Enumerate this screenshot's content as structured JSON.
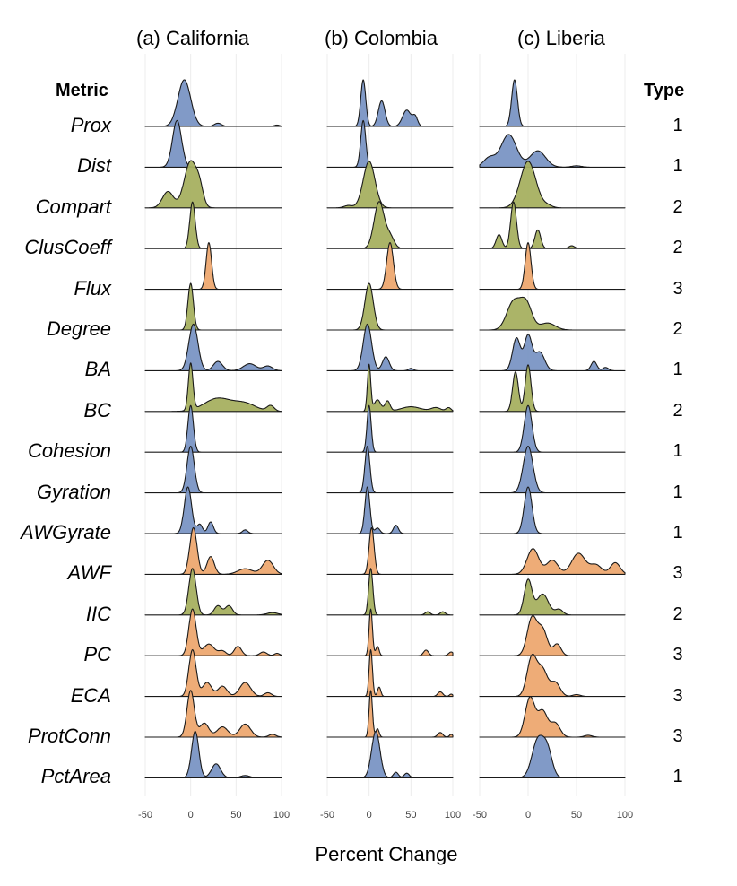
{
  "header": {
    "metric": "Metric",
    "type": "Type"
  },
  "xlabel": "Percent Change",
  "chart_data": {
    "type": "ridgeline",
    "x_ticks": [
      -50,
      0,
      50,
      100
    ],
    "xlim": [
      -50,
      100
    ],
    "colors": {
      "1": "#7a95c4",
      "2": "#a6b060",
      "3": "#eda870"
    },
    "panels": [
      {
        "key": "california",
        "title": "(a) California"
      },
      {
        "key": "colombia",
        "title": "(b) Colombia"
      },
      {
        "key": "liberia",
        "title": "(c) Liberia"
      }
    ],
    "rows": [
      {
        "metric": "Prox",
        "type": 1,
        "california": [
          [
            -7,
            7,
            1
          ],
          [
            30,
            4,
            0.07
          ],
          [
            95,
            3,
            0.03
          ]
        ],
        "colombia": [
          [
            -7,
            3,
            1
          ],
          [
            15,
            4,
            0.55
          ],
          [
            45,
            5,
            0.35
          ],
          [
            55,
            3,
            0.2
          ]
        ],
        "liberia": [
          [
            -14,
            3,
            1
          ]
        ]
      },
      {
        "metric": "Dist",
        "type": 1,
        "california": [
          [
            -15,
            5,
            1
          ]
        ],
        "colombia": [
          [
            -7,
            3,
            1
          ]
        ],
        "liberia": [
          [
            -20,
            8,
            0.7
          ],
          [
            -40,
            6,
            0.2
          ],
          [
            10,
            8,
            0.35
          ],
          [
            50,
            5,
            0.03
          ]
        ]
      },
      {
        "metric": "Compart",
        "type": 2,
        "california": [
          [
            0,
            7,
            1
          ],
          [
            -25,
            6,
            0.35
          ],
          [
            10,
            4,
            0.3
          ]
        ],
        "colombia": [
          [
            0,
            7,
            1
          ],
          [
            -25,
            5,
            0.05
          ]
        ],
        "liberia": [
          [
            0,
            8,
            1
          ],
          [
            20,
            5,
            0.05
          ]
        ]
      },
      {
        "metric": "ClusCoeff",
        "type": 2,
        "california": [
          [
            2,
            3,
            1
          ]
        ],
        "colombia": [
          [
            12,
            6,
            1
          ],
          [
            25,
            5,
            0.25
          ]
        ],
        "liberia": [
          [
            -15,
            3,
            1
          ],
          [
            -30,
            3,
            0.3
          ],
          [
            10,
            3,
            0.4
          ],
          [
            45,
            3,
            0.06
          ]
        ]
      },
      {
        "metric": "Flux",
        "type": 3,
        "california": [
          [
            20,
            3,
            1
          ]
        ],
        "colombia": [
          [
            25,
            4,
            1
          ]
        ],
        "liberia": [
          [
            0,
            3,
            1
          ]
        ]
      },
      {
        "metric": "Degree",
        "type": 2,
        "california": [
          [
            0,
            3,
            1
          ]
        ],
        "colombia": [
          [
            0,
            5,
            1
          ]
        ],
        "liberia": [
          [
            -15,
            7,
            0.6
          ],
          [
            -2,
            6,
            0.55
          ],
          [
            20,
            8,
            0.15
          ]
        ]
      },
      {
        "metric": "BA",
        "type": 1,
        "california": [
          [
            3,
            5,
            1
          ],
          [
            30,
            5,
            0.2
          ],
          [
            65,
            7,
            0.15
          ],
          [
            85,
            5,
            0.1
          ]
        ],
        "colombia": [
          [
            -2,
            5,
            1
          ],
          [
            20,
            4,
            0.3
          ],
          [
            50,
            3,
            0.05
          ]
        ],
        "liberia": [
          [
            -12,
            4,
            0.7
          ],
          [
            0,
            4,
            0.75
          ],
          [
            12,
            5,
            0.4
          ],
          [
            68,
            3,
            0.2
          ],
          [
            80,
            3,
            0.07
          ]
        ]
      },
      {
        "metric": "BC",
        "type": 2,
        "california": [
          [
            0,
            2.5,
            1
          ],
          [
            30,
            15,
            0.28
          ],
          [
            60,
            12,
            0.16
          ],
          [
            88,
            4,
            0.12
          ]
        ],
        "colombia": [
          [
            0,
            2,
            1
          ],
          [
            10,
            4,
            0.25
          ],
          [
            22,
            3,
            0.22
          ],
          [
            50,
            12,
            0.1
          ],
          [
            80,
            6,
            0.08
          ],
          [
            95,
            3,
            0.08
          ]
        ],
        "liberia": [
          [
            -13,
            3,
            0.85
          ],
          [
            0,
            3,
            1
          ]
        ]
      },
      {
        "metric": "Cohesion",
        "type": 1,
        "california": [
          [
            0,
            3,
            1
          ]
        ],
        "colombia": [
          [
            0,
            2.5,
            1
          ]
        ],
        "liberia": [
          [
            0,
            4,
            1
          ]
        ]
      },
      {
        "metric": "Gyration",
        "type": 1,
        "california": [
          [
            0,
            4,
            1
          ]
        ],
        "colombia": [
          [
            -2,
            3,
            1
          ]
        ],
        "liberia": [
          [
            0,
            5,
            1
          ]
        ]
      },
      {
        "metric": "AWGyrate",
        "type": 1,
        "california": [
          [
            -3,
            4,
            1
          ],
          [
            10,
            3,
            0.2
          ],
          [
            22,
            3,
            0.25
          ],
          [
            60,
            3,
            0.08
          ]
        ],
        "colombia": [
          [
            -2,
            3,
            1
          ],
          [
            10,
            3,
            0.12
          ],
          [
            32,
            3,
            0.18
          ]
        ],
        "liberia": [
          [
            0,
            4,
            1
          ]
        ]
      },
      {
        "metric": "AWF",
        "type": 3,
        "california": [
          [
            3,
            4,
            1
          ],
          [
            22,
            4,
            0.38
          ],
          [
            60,
            8,
            0.12
          ],
          [
            85,
            6,
            0.3
          ]
        ],
        "colombia": [
          [
            3,
            3,
            1
          ]
        ],
        "liberia": [
          [
            5,
            6,
            0.55
          ],
          [
            25,
            6,
            0.3
          ],
          [
            52,
            7,
            0.45
          ],
          [
            70,
            6,
            0.2
          ],
          [
            90,
            5,
            0.25
          ]
        ]
      },
      {
        "metric": "IIC",
        "type": 2,
        "california": [
          [
            2,
            4,
            1
          ],
          [
            30,
            4,
            0.2
          ],
          [
            42,
            4,
            0.2
          ],
          [
            90,
            6,
            0.05
          ]
        ],
        "colombia": [
          [
            2,
            2.5,
            1
          ],
          [
            70,
            3,
            0.07
          ],
          [
            88,
            3,
            0.07
          ]
        ],
        "liberia": [
          [
            0,
            4,
            0.75
          ],
          [
            15,
            6,
            0.45
          ],
          [
            32,
            4,
            0.12
          ]
        ]
      },
      {
        "metric": "PC",
        "type": 3,
        "california": [
          [
            2,
            4,
            1
          ],
          [
            20,
            6,
            0.25
          ],
          [
            35,
            4,
            0.1
          ],
          [
            52,
            4,
            0.2
          ],
          [
            80,
            4,
            0.08
          ],
          [
            95,
            3,
            0.05
          ]
        ],
        "colombia": [
          [
            2,
            2,
            1
          ],
          [
            10,
            2,
            0.2
          ],
          [
            68,
            3,
            0.12
          ],
          [
            98,
            3,
            0.08
          ]
        ],
        "liberia": [
          [
            4,
            5,
            0.8
          ],
          [
            15,
            5,
            0.55
          ],
          [
            30,
            4,
            0.25
          ]
        ]
      },
      {
        "metric": "ECA",
        "type": 3,
        "california": [
          [
            2,
            4,
            1
          ],
          [
            18,
            5,
            0.3
          ],
          [
            35,
            5,
            0.22
          ],
          [
            60,
            6,
            0.3
          ],
          [
            85,
            4,
            0.08
          ]
        ],
        "colombia": [
          [
            2,
            2,
            1
          ],
          [
            12,
            2,
            0.2
          ],
          [
            85,
            3,
            0.1
          ],
          [
            98,
            2,
            0.05
          ]
        ],
        "liberia": [
          [
            4,
            5,
            0.85
          ],
          [
            15,
            5,
            0.55
          ],
          [
            28,
            5,
            0.3
          ],
          [
            50,
            4,
            0.04
          ]
        ]
      },
      {
        "metric": "ProtConn",
        "type": 3,
        "california": [
          [
            0,
            4,
            1
          ],
          [
            15,
            5,
            0.3
          ],
          [
            35,
            6,
            0.22
          ],
          [
            60,
            6,
            0.28
          ],
          [
            90,
            4,
            0.06
          ]
        ],
        "colombia": [
          [
            2,
            2,
            1
          ],
          [
            10,
            2,
            0.18
          ],
          [
            85,
            3,
            0.1
          ],
          [
            98,
            2,
            0.06
          ]
        ],
        "liberia": [
          [
            2,
            5,
            0.85
          ],
          [
            15,
            5,
            0.55
          ],
          [
            28,
            5,
            0.3
          ],
          [
            62,
            4,
            0.04
          ]
        ]
      },
      {
        "metric": "PctArea",
        "type": 1,
        "california": [
          [
            5,
            4,
            1
          ],
          [
            28,
            5,
            0.3
          ],
          [
            60,
            5,
            0.05
          ]
        ],
        "colombia": [
          [
            8,
            5,
            1
          ],
          [
            32,
            3,
            0.12
          ],
          [
            45,
            3,
            0.1
          ]
        ],
        "liberia": [
          [
            10,
            6,
            0.8
          ],
          [
            20,
            5,
            0.55
          ]
        ]
      }
    ]
  }
}
